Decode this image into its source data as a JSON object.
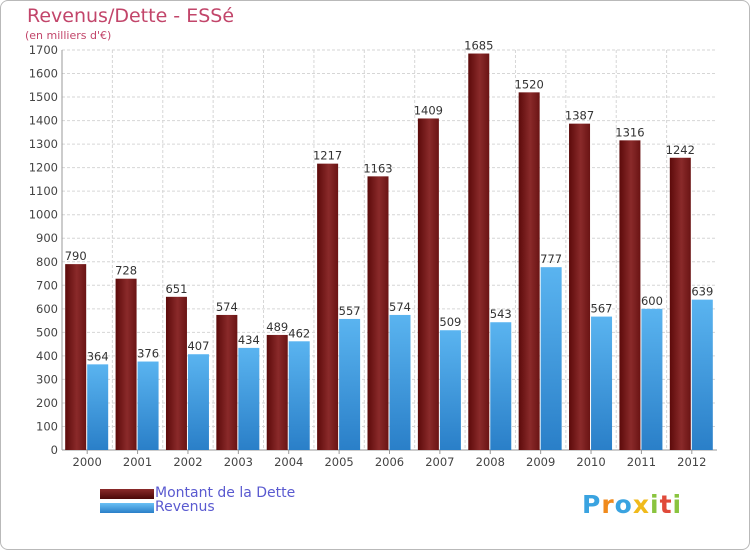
{
  "chart_data": {
    "type": "bar",
    "title": "Revenus/Dette - ESSé",
    "subtitle": "(en milliers d'€)",
    "xlabel": "",
    "ylabel": "",
    "ylim": [
      0,
      1700
    ],
    "ytick_step": 100,
    "grid": true,
    "categories": [
      "2000",
      "2001",
      "2002",
      "2003",
      "2004",
      "2005",
      "2006",
      "2007",
      "2008",
      "2009",
      "2010",
      "2011",
      "2012"
    ],
    "series": [
      {
        "name": "Montant de la Dette",
        "color": "#7a1a1a",
        "values": [
          790,
          728,
          651,
          574,
          489,
          1217,
          1163,
          1409,
          1685,
          1520,
          1387,
          1316,
          1242
        ]
      },
      {
        "name": "Revenus",
        "color": "#4aa6e8",
        "values": [
          364,
          376,
          407,
          434,
          462,
          557,
          574,
          509,
          543,
          777,
          567,
          600,
          639
        ]
      }
    ],
    "legend_position": "bottom-left"
  },
  "logo": {
    "letters": [
      "P",
      "r",
      "o",
      "x",
      "i",
      "t",
      "i"
    ]
  }
}
